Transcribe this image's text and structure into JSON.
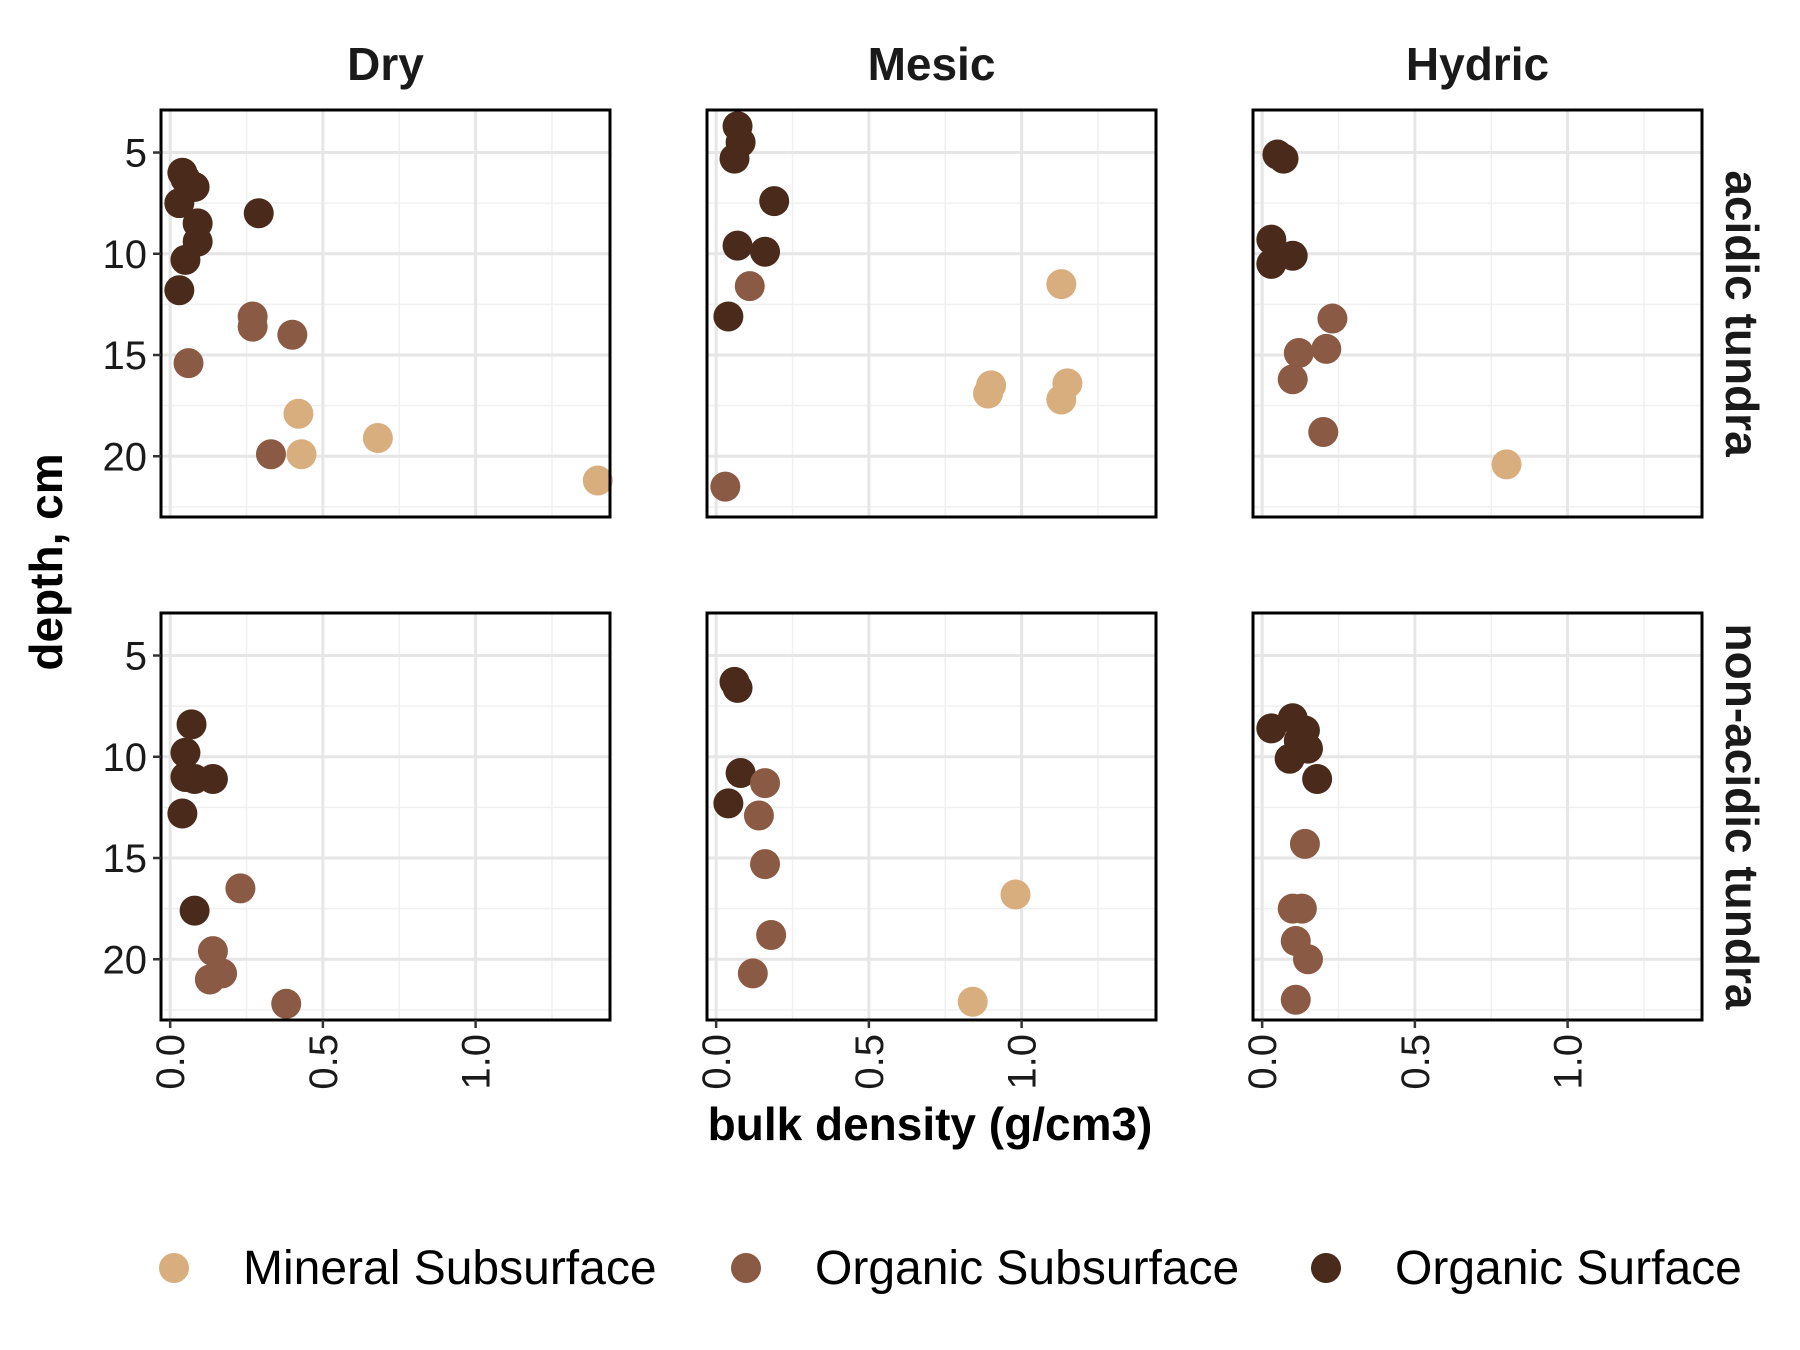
{
  "chart_data": {
    "type": "scatter",
    "facets": {
      "columns": [
        "Dry",
        "Mesic",
        "Hydric"
      ],
      "rows": [
        "acidic tundra",
        "non-acidic tundra"
      ]
    },
    "xlabel": "bulk density (g/cm3)",
    "ylabel": "depth, cm",
    "xlim": [
      -0.03,
      1.44
    ],
    "ylim": [
      23.0,
      2.9
    ],
    "y_reversed": true,
    "x_ticks": [
      "0.0",
      "0.5",
      "1.0"
    ],
    "x_tick_values": [
      0,
      0.5,
      1.0
    ],
    "y_ticks": [
      "5",
      "10",
      "15",
      "20"
    ],
    "y_tick_values": [
      5,
      10,
      15,
      20
    ],
    "grid": true,
    "legend_position": "bottom",
    "series": [
      {
        "name": "Mineral Subsurface",
        "color": "#D9AE7E"
      },
      {
        "name": "Organic Subsurface",
        "color": "#8B5A44"
      },
      {
        "name": "Organic Surface",
        "color": "#4A2A1B"
      }
    ],
    "panels": [
      {
        "col": "Dry",
        "row": "acidic tundra",
        "points": [
          {
            "x": 0.04,
            "y": 6.0,
            "s": "Organic Surface"
          },
          {
            "x": 0.05,
            "y": 6.3,
            "s": "Organic Surface"
          },
          {
            "x": 0.08,
            "y": 6.7,
            "s": "Organic Surface"
          },
          {
            "x": 0.03,
            "y": 7.5,
            "s": "Organic Surface"
          },
          {
            "x": 0.29,
            "y": 8.0,
            "s": "Organic Surface"
          },
          {
            "x": 0.09,
            "y": 8.5,
            "s": "Organic Surface"
          },
          {
            "x": 0.09,
            "y": 9.4,
            "s": "Organic Surface"
          },
          {
            "x": 0.05,
            "y": 10.3,
            "s": "Organic Surface"
          },
          {
            "x": 0.03,
            "y": 11.8,
            "s": "Organic Surface"
          },
          {
            "x": 0.27,
            "y": 13.1,
            "s": "Organic Subsurface"
          },
          {
            "x": 0.27,
            "y": 13.6,
            "s": "Organic Subsurface"
          },
          {
            "x": 0.4,
            "y": 14.0,
            "s": "Organic Subsurface"
          },
          {
            "x": 0.06,
            "y": 15.4,
            "s": "Organic Subsurface"
          },
          {
            "x": 0.33,
            "y": 19.9,
            "s": "Organic Subsurface"
          },
          {
            "x": 0.42,
            "y": 17.9,
            "s": "Mineral Subsurface"
          },
          {
            "x": 0.43,
            "y": 19.9,
            "s": "Mineral Subsurface"
          },
          {
            "x": 0.68,
            "y": 19.1,
            "s": "Mineral Subsurface"
          },
          {
            "x": 1.4,
            "y": 21.2,
            "s": "Mineral Subsurface"
          }
        ]
      },
      {
        "col": "Mesic",
        "row": "acidic tundra",
        "points": [
          {
            "x": 0.07,
            "y": 3.7,
            "s": "Organic Surface"
          },
          {
            "x": 0.08,
            "y": 4.5,
            "s": "Organic Surface"
          },
          {
            "x": 0.06,
            "y": 5.3,
            "s": "Organic Surface"
          },
          {
            "x": 0.19,
            "y": 7.4,
            "s": "Organic Surface"
          },
          {
            "x": 0.07,
            "y": 9.6,
            "s": "Organic Surface"
          },
          {
            "x": 0.16,
            "y": 9.9,
            "s": "Organic Surface"
          },
          {
            "x": 0.04,
            "y": 13.1,
            "s": "Organic Surface"
          },
          {
            "x": 0.11,
            "y": 11.6,
            "s": "Organic Subsurface"
          },
          {
            "x": 0.03,
            "y": 21.5,
            "s": "Organic Subsurface"
          },
          {
            "x": 1.13,
            "y": 11.5,
            "s": "Mineral Subsurface"
          },
          {
            "x": 0.9,
            "y": 16.5,
            "s": "Mineral Subsurface"
          },
          {
            "x": 0.89,
            "y": 16.9,
            "s": "Mineral Subsurface"
          },
          {
            "x": 1.15,
            "y": 16.4,
            "s": "Mineral Subsurface"
          },
          {
            "x": 1.13,
            "y": 17.2,
            "s": "Mineral Subsurface"
          }
        ]
      },
      {
        "col": "Hydric",
        "row": "acidic tundra",
        "points": [
          {
            "x": 0.05,
            "y": 5.1,
            "s": "Organic Surface"
          },
          {
            "x": 0.07,
            "y": 5.3,
            "s": "Organic Surface"
          },
          {
            "x": 0.03,
            "y": 9.3,
            "s": "Organic Surface"
          },
          {
            "x": 0.1,
            "y": 10.1,
            "s": "Organic Surface"
          },
          {
            "x": 0.03,
            "y": 10.5,
            "s": "Organic Surface"
          },
          {
            "x": 0.23,
            "y": 13.2,
            "s": "Organic Subsurface"
          },
          {
            "x": 0.12,
            "y": 14.9,
            "s": "Organic Subsurface"
          },
          {
            "x": 0.21,
            "y": 14.7,
            "s": "Organic Subsurface"
          },
          {
            "x": 0.1,
            "y": 16.2,
            "s": "Organic Subsurface"
          },
          {
            "x": 0.2,
            "y": 18.8,
            "s": "Organic Subsurface"
          },
          {
            "x": 0.8,
            "y": 20.4,
            "s": "Mineral Subsurface"
          }
        ]
      },
      {
        "col": "Dry",
        "row": "non-acidic tundra",
        "points": [
          {
            "x": 0.07,
            "y": 8.4,
            "s": "Organic Surface"
          },
          {
            "x": 0.05,
            "y": 9.8,
            "s": "Organic Surface"
          },
          {
            "x": 0.05,
            "y": 11.0,
            "s": "Organic Surface"
          },
          {
            "x": 0.08,
            "y": 11.1,
            "s": "Organic Surface"
          },
          {
            "x": 0.14,
            "y": 11.1,
            "s": "Organic Surface"
          },
          {
            "x": 0.04,
            "y": 12.8,
            "s": "Organic Surface"
          },
          {
            "x": 0.08,
            "y": 17.6,
            "s": "Organic Surface"
          },
          {
            "x": 0.23,
            "y": 16.5,
            "s": "Organic Subsurface"
          },
          {
            "x": 0.14,
            "y": 19.6,
            "s": "Organic Subsurface"
          },
          {
            "x": 0.17,
            "y": 20.7,
            "s": "Organic Subsurface"
          },
          {
            "x": 0.13,
            "y": 21.0,
            "s": "Organic Subsurface"
          },
          {
            "x": 0.38,
            "y": 22.2,
            "s": "Organic Subsurface"
          }
        ]
      },
      {
        "col": "Mesic",
        "row": "non-acidic tundra",
        "points": [
          {
            "x": 0.06,
            "y": 6.3,
            "s": "Organic Surface"
          },
          {
            "x": 0.07,
            "y": 6.6,
            "s": "Organic Surface"
          },
          {
            "x": 0.08,
            "y": 10.8,
            "s": "Organic Surface"
          },
          {
            "x": 0.04,
            "y": 12.3,
            "s": "Organic Surface"
          },
          {
            "x": 0.16,
            "y": 11.3,
            "s": "Organic Subsurface"
          },
          {
            "x": 0.14,
            "y": 12.9,
            "s": "Organic Subsurface"
          },
          {
            "x": 0.16,
            "y": 15.3,
            "s": "Organic Subsurface"
          },
          {
            "x": 0.18,
            "y": 18.8,
            "s": "Organic Subsurface"
          },
          {
            "x": 0.12,
            "y": 20.7,
            "s": "Organic Subsurface"
          },
          {
            "x": 0.98,
            "y": 16.8,
            "s": "Mineral Subsurface"
          },
          {
            "x": 0.84,
            "y": 22.1,
            "s": "Mineral Subsurface"
          }
        ]
      },
      {
        "col": "Hydric",
        "row": "non-acidic tundra",
        "points": [
          {
            "x": 0.03,
            "y": 8.6,
            "s": "Organic Surface"
          },
          {
            "x": 0.1,
            "y": 8.1,
            "s": "Organic Surface"
          },
          {
            "x": 0.14,
            "y": 8.7,
            "s": "Organic Surface"
          },
          {
            "x": 0.12,
            "y": 9.2,
            "s": "Organic Surface"
          },
          {
            "x": 0.15,
            "y": 9.6,
            "s": "Organic Surface"
          },
          {
            "x": 0.09,
            "y": 10.1,
            "s": "Organic Surface"
          },
          {
            "x": 0.18,
            "y": 11.1,
            "s": "Organic Surface"
          },
          {
            "x": 0.14,
            "y": 14.3,
            "s": "Organic Subsurface"
          },
          {
            "x": 0.1,
            "y": 17.5,
            "s": "Organic Subsurface"
          },
          {
            "x": 0.13,
            "y": 17.5,
            "s": "Organic Subsurface"
          },
          {
            "x": 0.11,
            "y": 19.1,
            "s": "Organic Subsurface"
          },
          {
            "x": 0.15,
            "y": 20.0,
            "s": "Organic Subsurface"
          },
          {
            "x": 0.11,
            "y": 22.0,
            "s": "Organic Subsurface"
          }
        ]
      }
    ]
  }
}
